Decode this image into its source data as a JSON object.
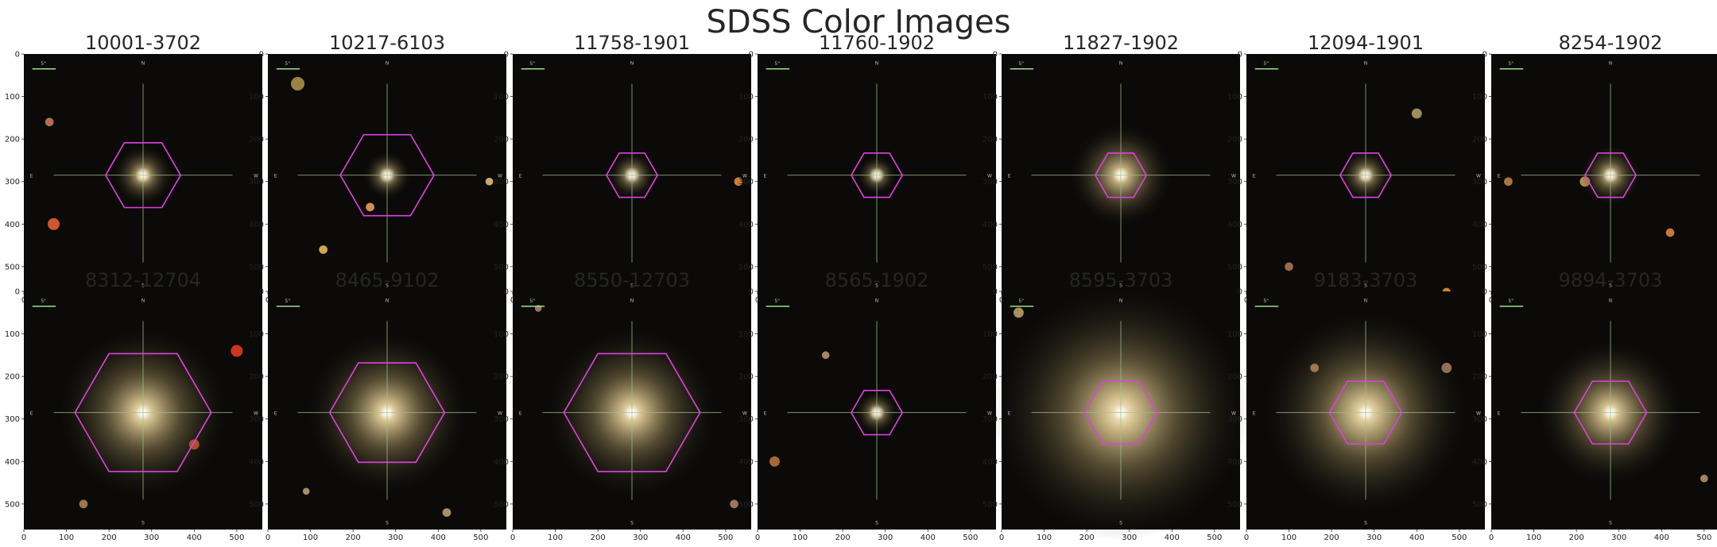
{
  "figure": {
    "title": "SDSS Color Images",
    "x_ticks": [
      "0",
      "100",
      "200",
      "300",
      "400",
      "500"
    ],
    "y_ticks": [
      "0",
      "100",
      "200",
      "300",
      "400",
      "500"
    ],
    "scale_bar_label": "5\"",
    "compass": {
      "n": "N",
      "s": "S",
      "e": "E",
      "w": "W"
    },
    "overlay_color": "#e040e0",
    "crosshair_color": "#9fbf8f",
    "panels": [
      {
        "id": "10001-3702",
        "hex_radius": 88
      },
      {
        "id": "10217-6103",
        "hex_radius": 110
      },
      {
        "id": "11758-1901",
        "hex_radius": 60
      },
      {
        "id": "11760-1902",
        "hex_radius": 60
      },
      {
        "id": "11827-1902",
        "hex_radius": 60
      },
      {
        "id": "12094-1901",
        "hex_radius": 60
      },
      {
        "id": "8254-1902",
        "hex_radius": 60
      },
      {
        "id": "8312-12704",
        "hex_radius": 160
      },
      {
        "id": "8465-9102",
        "hex_radius": 135
      },
      {
        "id": "8550-12703",
        "hex_radius": 160
      },
      {
        "id": "8565-1902",
        "hex_radius": 60
      },
      {
        "id": "8595-3703",
        "hex_radius": 85
      },
      {
        "id": "9183-3703",
        "hex_radius": 85
      },
      {
        "id": "9894-3703",
        "hex_radius": 85
      }
    ]
  }
}
